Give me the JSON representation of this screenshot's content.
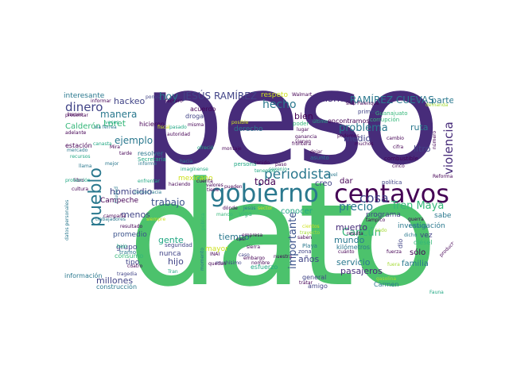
{
  "palette": {
    "purple": "#472c7a",
    "green": "#4cc26c",
    "teal": "#2a788e",
    "blue": "#3b528b",
    "lime": "#a5db36",
    "cyan": "#22a884",
    "indigo": "#414487",
    "seafoam": "#35b779",
    "yellow": "#cde11d",
    "dark": "#440154"
  },
  "words": [
    {
      "id": "peso",
      "text": "peso",
      "color": "purple"
    },
    {
      "id": "dato",
      "text": "dato",
      "color": "green"
    },
    {
      "id": "centavos",
      "text": "centavos",
      "color": "dark"
    },
    {
      "id": "gobierno",
      "text": "gobierno",
      "color": "teal"
    },
    {
      "id": "jovenes",
      "text": "jóvenes",
      "color": "lime"
    },
    {
      "id": "pais",
      "text": "país",
      "color": "teal"
    },
    {
      "id": "pueblo",
      "text": "pueblo",
      "color": "teal"
    },
    {
      "id": "unido",
      "text": "Unido",
      "color": "yellow"
    },
    {
      "id": "periodista",
      "text": "periodista",
      "color": "teal"
    },
    {
      "id": "cosa",
      "text": "cosa",
      "color": "indigo"
    },
    {
      "id": "tren-maya",
      "text": "Tren Maya",
      "color": "seafoam"
    },
    {
      "id": "violencia",
      "text": "violencia",
      "color": "purple"
    },
    {
      "id": "importante",
      "text": "importante",
      "color": "blue"
    },
    {
      "id": "jesus-ramirez",
      "text": "JESÚS RAMÍREZ",
      "color": "indigo"
    },
    {
      "id": "ramirez-cuevas",
      "text": "RAMÍREZ CUEVAS",
      "color": "teal"
    },
    {
      "id": "mismo",
      "text": "mismo",
      "color": "purple"
    },
    {
      "id": "hecho",
      "text": "hecho",
      "color": "teal"
    },
    {
      "id": "hoy",
      "text": "hoy",
      "color": "teal"
    },
    {
      "id": "dinero",
      "text": "dinero",
      "color": "indigo"
    },
    {
      "id": "manera",
      "text": "manera",
      "color": "teal"
    },
    {
      "id": "hackeo",
      "text": "hackeo",
      "color": "indigo"
    },
    {
      "id": "loret",
      "text": "Loret",
      "color": "seafoam"
    },
    {
      "id": "calderon",
      "text": "Calderón",
      "color": "seafoam"
    },
    {
      "id": "ejemplo",
      "text": "ejemplo",
      "color": "teal"
    },
    {
      "id": "homicidio",
      "text": "homicidio",
      "color": "indigo"
    },
    {
      "id": "trabajo",
      "text": "trabajo",
      "color": "blue"
    },
    {
      "id": "toda",
      "text": "toda",
      "color": "dark"
    },
    {
      "id": "creo",
      "text": "creo",
      "color": "indigo"
    },
    {
      "id": "precio",
      "text": "precio",
      "color": "teal"
    },
    {
      "id": "problema",
      "text": "problema",
      "color": "teal"
    },
    {
      "id": "ruta",
      "text": "ruta",
      "color": "teal"
    },
    {
      "id": "litro",
      "text": "litro",
      "color": "indigo"
    },
    {
      "id": "medio",
      "text": "medio",
      "color": "indigo"
    },
    {
      "id": "bien",
      "text": "bien",
      "color": "dark"
    },
    {
      "id": "parte",
      "text": "parte",
      "color": "teal"
    },
    {
      "id": "cancun",
      "text": "Cancún",
      "color": "seafoam"
    },
    {
      "id": "muerto",
      "text": "muerto",
      "color": "purple"
    },
    {
      "id": "mundo",
      "text": "mundo",
      "color": "teal"
    },
    {
      "id": "servicio",
      "text": "servicio",
      "color": "teal"
    },
    {
      "id": "pasajeros",
      "text": "pasajeros",
      "color": "purple"
    },
    {
      "id": "anos",
      "text": "años",
      "color": "indigo"
    },
    {
      "id": "familia",
      "text": "familia",
      "color": "teal"
    },
    {
      "id": "solo",
      "text": "sólo",
      "color": "dark"
    },
    {
      "id": "millones",
      "text": "millones",
      "color": "indigo"
    },
    {
      "id": "hijo",
      "text": "hijo",
      "color": "indigo"
    },
    {
      "id": "gente",
      "text": "gente",
      "color": "cyan"
    },
    {
      "id": "tiempo",
      "text": "tiempo",
      "color": "teal"
    },
    {
      "id": "menos",
      "text": "menos",
      "color": "indigo"
    },
    {
      "id": "conocer",
      "text": "conocer",
      "color": "cyan"
    },
    {
      "id": "programa",
      "text": "programa",
      "color": "indigo"
    },
    {
      "id": "investigacion",
      "text": "investigación",
      "color": "teal"
    },
    {
      "id": "sabe",
      "text": "sabe",
      "color": "teal"
    },
    {
      "id": "dar",
      "text": "dar",
      "color": "dark"
    },
    {
      "id": "grupo",
      "text": "grupo",
      "color": "indigo"
    },
    {
      "id": "nunca",
      "text": "nunca",
      "color": "indigo"
    },
    {
      "id": "promedio",
      "text": "promedio",
      "color": "blue"
    },
    {
      "id": "campeche",
      "text": "Campeche",
      "color": "dark"
    },
    {
      "id": "tipo",
      "text": "tipo",
      "color": "indigo"
    },
    {
      "id": "respeto",
      "text": "respeto",
      "color": "yellow"
    },
    {
      "id": "derecho",
      "text": "derecho",
      "color": "teal"
    },
    {
      "id": "interesante",
      "text": "interesante",
      "color": "teal"
    },
    {
      "id": "mexicano",
      "text": "mexicano",
      "color": "yellow"
    },
    {
      "id": "vez",
      "text": "vez",
      "color": "indigo"
    },
    {
      "id": "mayor",
      "text": "mayor",
      "color": "yellow"
    },
    {
      "id": "consumo",
      "text": "consumo",
      "color": "seafoam"
    },
    {
      "id": "construccion",
      "text": "construcción",
      "color": "teal"
    },
    {
      "id": "informacion",
      "text": "información",
      "color": "teal"
    },
    {
      "id": "amigo",
      "text": "amigo",
      "color": "indigo"
    },
    {
      "id": "esfuerzo",
      "text": "esfuerzo",
      "color": "cyan"
    },
    {
      "id": "carmen",
      "text": "Carmen",
      "color": "teal"
    },
    {
      "id": "kilometros",
      "text": "kilómetros",
      "color": "teal"
    },
    {
      "id": "general",
      "text": "general",
      "color": "indigo"
    },
    {
      "id": "dio",
      "text": "dio",
      "color": "indigo"
    },
    {
      "id": "diesel",
      "text": "diésel",
      "color": "seafoam"
    },
    {
      "id": "encontramos",
      "text": "encontramos",
      "color": "dark"
    },
    {
      "id": "viga",
      "text": "viga",
      "color": "seafoam"
    },
    {
      "id": "estacion",
      "text": "estación",
      "color": "dark"
    },
    {
      "id": "hicieron",
      "text": "hicieron",
      "color": "dark"
    },
    {
      "id": "resolver",
      "text": "resolver",
      "color": "teal"
    },
    {
      "id": "droga",
      "text": "droga",
      "color": "indigo"
    },
    {
      "id": "acuerdo",
      "text": "acuerdo",
      "color": "dark"
    },
    {
      "id": "persona",
      "text": "persona",
      "color": "cyan"
    },
    {
      "id": "zona",
      "text": "zona",
      "color": "indigo"
    },
    {
      "id": "playa",
      "text": "Playa",
      "color": "teal"
    },
    {
      "id": "asunto",
      "text": "asunto",
      "color": "teal"
    },
    {
      "id": "combustible",
      "text": "combustible",
      "color": "dark"
    },
    {
      "id": "guanajuato",
      "text": "Guanajuato",
      "color": "seafoam"
    },
    {
      "id": "corrupcion",
      "text": "corrupción",
      "color": "seafoam"
    },
    {
      "id": "politica",
      "text": "política",
      "color": "indigo"
    },
    {
      "id": "primero",
      "text": "primero",
      "color": "indigo"
    },
    {
      "id": "poder",
      "text": "poder",
      "color": "seafoam"
    },
    {
      "id": "walmart",
      "text": "Walmart",
      "color": "dark"
    },
    {
      "id": "palenque",
      "text": "sido Palenque",
      "color": "dark"
    },
    {
      "id": "demanda",
      "text": "demanda",
      "color": "lime"
    },
    {
      "id": "seguridad",
      "text": "seguridad",
      "color": "indigo"
    },
    {
      "id": "cuatro",
      "text": "cuatro",
      "color": "dark"
    },
    {
      "id": "tramo",
      "text": "tramo",
      "color": "teal"
    },
    {
      "id": "reforma",
      "text": "Reforma",
      "color": "dark"
    },
    {
      "id": "fauna",
      "text": "Fauna",
      "color": "cyan"
    },
    {
      "id": "secretaria",
      "text": "Secretaría",
      "color": "cyan"
    },
    {
      "id": "ganancia",
      "text": "ganancia",
      "color": "dark"
    },
    {
      "id": "cinco",
      "text": "cinco",
      "color": "dark"
    },
    {
      "id": "valores",
      "text": "valores",
      "color": "dark"
    },
    {
      "id": "ciudad",
      "text": "Ciudad",
      "color": "teal"
    },
    {
      "id": "trabajadores",
      "text": "trabajadores",
      "color": "teal"
    },
    {
      "id": "resultado",
      "text": "resultado",
      "color": "dark"
    },
    {
      "id": "imaginense",
      "text": "imagínense",
      "color": "cyan"
    },
    {
      "id": "enfrentar",
      "text": "enfrentar",
      "color": "cyan"
    },
    {
      "id": "presentar",
      "text": "presentar",
      "color": "dark"
    },
    {
      "id": "informar",
      "text": "informar",
      "color": "dark"
    },
    {
      "id": "tamo",
      "text": "tampico",
      "color": "dark"
    },
    {
      "id": "gasolina",
      "text": "gasolina",
      "color": "lime"
    },
    {
      "id": "cuanto",
      "text": "cuánto",
      "color": "dark"
    },
    {
      "id": "campana",
      "text": "campaña",
      "color": "dark"
    },
    {
      "id": "muchisimo",
      "text": "muchísimo",
      "color": "indigo"
    },
    {
      "id": "siempre",
      "text": "siempre",
      "color": "yellow"
    },
    {
      "id": "publica",
      "text": "pública",
      "color": "seafoam"
    },
    {
      "id": "posible",
      "text": "posible",
      "color": "yellow"
    },
    {
      "id": "frontera",
      "text": "frontera",
      "color": "dark"
    },
    {
      "id": "tenemos",
      "text": "tenemos",
      "color": "cyan"
    },
    {
      "id": "febrero",
      "text": "febrero",
      "color": "dark"
    },
    {
      "id": "pones",
      "text": "pones",
      "color": "indigo"
    },
    {
      "id": "guerra",
      "text": "guerra",
      "color": "dark"
    },
    {
      "id": "historia",
      "text": "historia",
      "color": "teal"
    },
    {
      "id": "llama",
      "text": "llama",
      "color": "teal"
    },
    {
      "id": "libro",
      "text": "libro",
      "color": "dark"
    },
    {
      "id": "cultura",
      "text": "cultura",
      "color": "dark"
    },
    {
      "id": "tren",
      "text": "trenes",
      "color": "dark"
    },
    {
      "id": "adelante",
      "text": "adelante",
      "color": "dark"
    },
    {
      "id": "mercado",
      "text": "mercado",
      "color": "teal"
    },
    {
      "id": "ultimo",
      "text": "último",
      "color": "cyan"
    },
    {
      "id": "podemos",
      "text": "podemos",
      "color": "dark"
    },
    {
      "id": "nivel",
      "text": "nivel",
      "color": "teal"
    },
    {
      "id": "productos",
      "text": "productos",
      "color": "dark"
    },
    {
      "id": "recursos",
      "text": "recursos",
      "color": "cyan"
    },
    {
      "id": "proteccion",
      "text": "protección",
      "color": "cyan"
    },
    {
      "id": "datos-personales",
      "text": "datos personales",
      "color": "teal"
    },
    {
      "id": "haciendo",
      "text": "haciendo",
      "color": "dark"
    },
    {
      "id": "democracia",
      "text": "democracia",
      "color": "teal"
    },
    {
      "id": "tiene",
      "text": "tiene",
      "color": "dark"
    },
    {
      "id": "inai",
      "text": "INAI",
      "color": "dark"
    },
    {
      "id": "pueden",
      "text": "pueden",
      "color": "dark"
    },
    {
      "id": "tratar",
      "text": "tratar",
      "color": "dark"
    },
    {
      "id": "empresa",
      "text": "empresa",
      "color": "dark"
    },
    {
      "id": "donde",
      "text": "dónde",
      "color": "dark"
    },
    {
      "id": "jesus",
      "text": "Jesús",
      "color": "teal"
    },
    {
      "id": "sector",
      "text": "sector",
      "color": "yellow"
    },
    {
      "id": "cientos",
      "text": "cientos",
      "color": "yellow"
    },
    {
      "id": "hacia",
      "text": "hacia",
      "color": "teal"
    },
    {
      "id": "mejor",
      "text": "mejor",
      "color": "teal"
    },
    {
      "id": "lugar",
      "text": "lugar",
      "color": "dark"
    },
    {
      "id": "quedan",
      "text": "quedan",
      "color": "dark"
    },
    {
      "id": "tragedia",
      "text": "tragedia",
      "color": "indigo"
    },
    {
      "id": "informe",
      "text": "informe",
      "color": "teal"
    },
    {
      "id": "nombre",
      "text": "nombre",
      "color": "dark"
    },
    {
      "id": "bajo",
      "text": "bajo",
      "color": "cyan"
    },
    {
      "id": "casa",
      "text": "caso",
      "color": "indigo"
    },
    {
      "id": "embargo",
      "text": "embargo",
      "color": "dark"
    },
    {
      "id": "manda",
      "text": "mando",
      "color": "seafoam"
    },
    {
      "id": "montaje",
      "text": "montaje",
      "color": "dark"
    },
    {
      "id": "nuestra",
      "text": "nuestra",
      "color": "dark"
    },
    {
      "id": "resulta",
      "text": "resulta",
      "color": "dark"
    },
    {
      "id": "trayecto",
      "text": "trayecto",
      "color": "lime"
    },
    {
      "id": "sierra",
      "text": "sierra",
      "color": "dark"
    },
    {
      "id": "tipo2",
      "text": "fuera",
      "color": "lime"
    },
    {
      "id": "dicho",
      "text": "dicho",
      "color": "teal"
    },
    {
      "id": "numero",
      "text": "número",
      "color": "dark"
    },
    {
      "id": "fuerza",
      "text": "fuerza",
      "color": "dark"
    },
    {
      "id": "lado",
      "text": "Lado",
      "color": "lime"
    },
    {
      "id": "saben",
      "text": "saben",
      "color": "dark"
    },
    {
      "id": "tran",
      "text": "Tran",
      "color": "cyan"
    },
    {
      "id": "vienen",
      "text": "vienen",
      "color": "dark"
    },
    {
      "id": "tenido",
      "text": "tenido",
      "color": "dark"
    },
    {
      "id": "fiscal",
      "text": "fiscal",
      "color": "yellow"
    },
    {
      "id": "cuenta",
      "text": "cuenta",
      "color": "dark"
    },
    {
      "id": "autoridad",
      "text": "autoridad",
      "color": "dark"
    },
    {
      "id": "pasado",
      "text": "pasado",
      "color": "cyan"
    },
    {
      "id": "veces",
      "text": "veces",
      "color": "cyan"
    },
    {
      "id": "canasta",
      "text": "canasta",
      "color": "cyan"
    },
    {
      "id": "paso",
      "text": "paso",
      "color": "dark"
    },
    {
      "id": "sexenio",
      "text": "sexenio",
      "color": "cyan"
    },
    {
      "id": "dejar",
      "text": "dejar",
      "color": "dark"
    },
    {
      "id": "ofrecio",
      "text": "ofreció",
      "color": "cyan"
    },
    {
      "id": "cambio",
      "text": "cambio",
      "color": "dark"
    },
    {
      "id": "cifra",
      "text": "cifra",
      "color": "dark"
    },
    {
      "id": "muchos",
      "text": "muchos",
      "color": "dark"
    },
    {
      "id": "momento",
      "text": "momento",
      "color": "teal"
    },
    {
      "id": "mira",
      "text": "Mira",
      "color": "dark"
    },
    {
      "id": "casi",
      "text": "casi",
      "color": "dark"
    },
    {
      "id": "vez2",
      "text": "misma",
      "color": "dark"
    },
    {
      "id": "publicos",
      "text": "vía férrea",
      "color": "teal"
    },
    {
      "id": "tarde",
      "text": "tarde",
      "color": "dark"
    }
  ]
}
